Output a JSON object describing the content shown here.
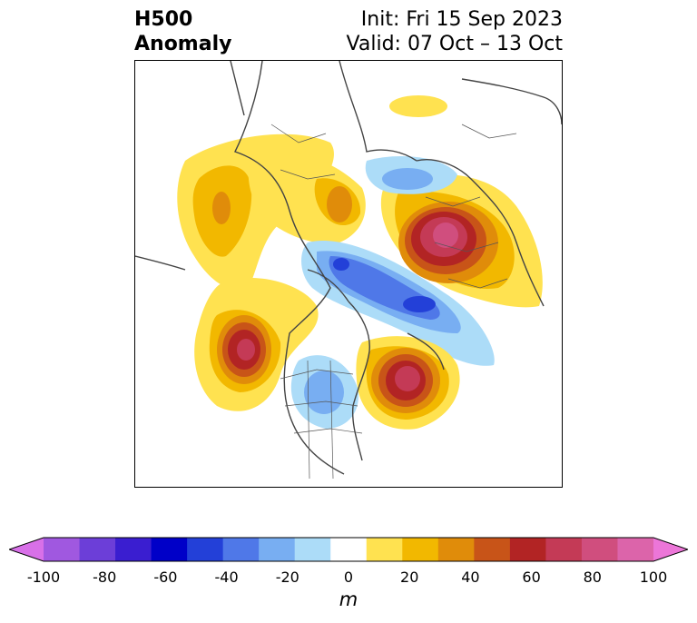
{
  "title": {
    "left_line1": "H500",
    "left_line2": "Anomaly",
    "right_line1": "Init: Fri 15 Sep 2023",
    "right_line2": "Valid: 07 Oct – 13 Oct"
  },
  "colorbar": {
    "colors": [
      "#d870e8",
      "#a058e0",
      "#6c3ed8",
      "#3a1ed0",
      "#0000c8",
      "#2340d8",
      "#4f78e8",
      "#78aef2",
      "#acdcf8",
      "#ffffff",
      "#ffe250",
      "#f2b800",
      "#e08c0a",
      "#c85418",
      "#b22424",
      "#c43a56",
      "#d04e7e",
      "#dc64aa",
      "#ec76d8"
    ],
    "tick_labels": [
      "-100",
      "-80",
      "-60",
      "-40",
      "-20",
      "0",
      "20",
      "40",
      "60",
      "80",
      "100"
    ],
    "units": "m"
  }
}
